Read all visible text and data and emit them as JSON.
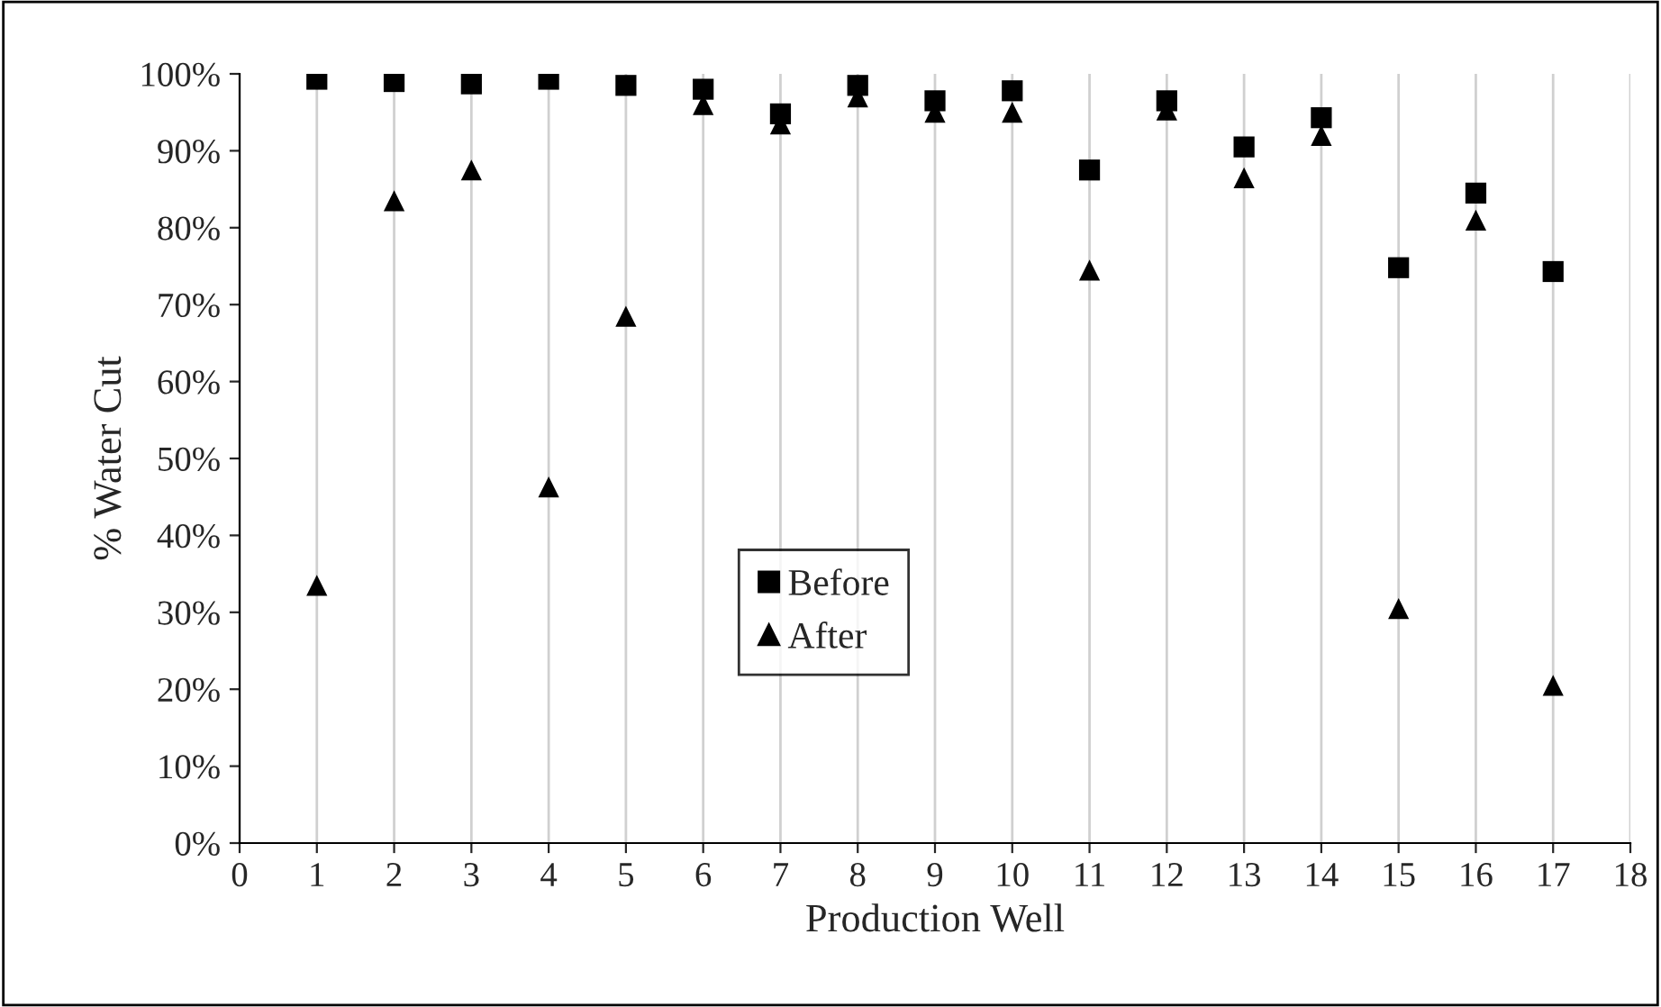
{
  "chart_data": {
    "type": "scatter",
    "xlabel": "Production Well",
    "ylabel": "% Water Cut",
    "x": [
      1,
      2,
      3,
      4,
      5,
      6,
      7,
      8,
      9,
      10,
      11,
      12,
      13,
      14,
      15,
      16,
      17
    ],
    "series": [
      {
        "name": "Before",
        "color": "#000000",
        "marker": "square",
        "values": [
          99.3,
          99,
          98.7,
          99.3,
          98.5,
          98,
          94.8,
          98.5,
          96.5,
          97.8,
          87.5,
          96.5,
          90.5,
          94.3,
          74.8,
          84.5,
          74.3
        ]
      },
      {
        "name": "After",
        "color": "#000000",
        "marker": "triangle",
        "values": [
          33.5,
          83.5,
          87.5,
          46.3,
          68.5,
          96,
          93.5,
          97,
          95,
          95,
          74.5,
          95.3,
          86.5,
          92,
          30.5,
          81,
          20.5
        ]
      }
    ],
    "xlim": [
      0,
      18
    ],
    "xticks": [
      0,
      1,
      2,
      3,
      4,
      5,
      6,
      7,
      8,
      9,
      10,
      11,
      12,
      13,
      14,
      15,
      16,
      17,
      18
    ],
    "ylim": [
      0,
      100
    ],
    "yticks": [
      {
        "value": 0,
        "label": "0%"
      },
      {
        "value": 10,
        "label": "10%"
      },
      {
        "value": 20,
        "label": "20%"
      },
      {
        "value": 30,
        "label": "30%"
      },
      {
        "value": 40,
        "label": "40%"
      },
      {
        "value": 50,
        "label": "50%"
      },
      {
        "value": 60,
        "label": "60%"
      },
      {
        "value": 70,
        "label": "70%"
      },
      {
        "value": 80,
        "label": "80%"
      },
      {
        "value": 90,
        "label": "90%"
      },
      {
        "value": 100,
        "label": "100%"
      }
    ],
    "grid": "x",
    "legend": "center"
  }
}
